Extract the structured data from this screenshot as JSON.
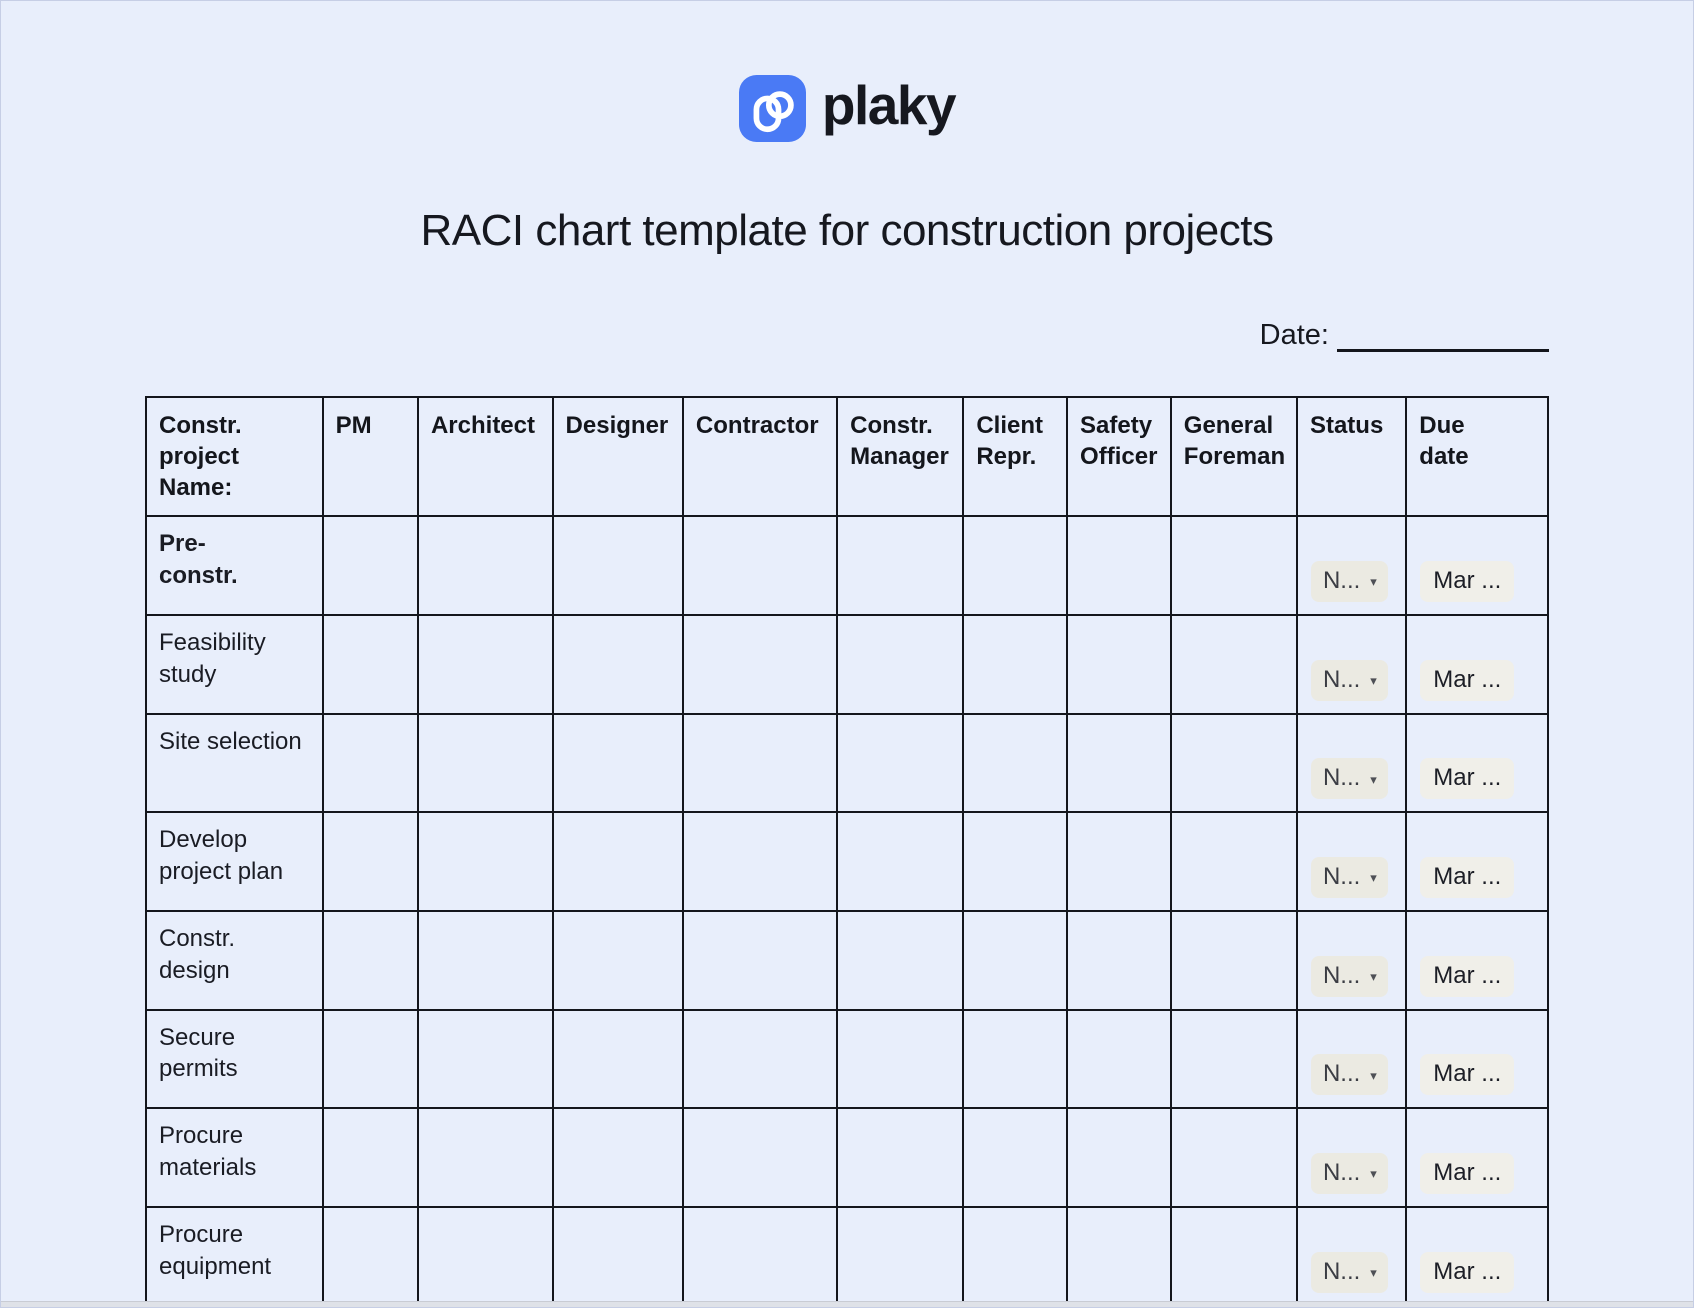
{
  "colors": {
    "page_bg": "#e8eefb",
    "logo_blue": "#4a7af5",
    "text_dark": "#16181f",
    "table_border": "#14161c",
    "status_chip_bg": "#ebeae2",
    "due_chip_bg": "#f0efe9"
  },
  "brand": {
    "name": "plaky"
  },
  "header": {
    "title": "RACI chart template for construction projects"
  },
  "date": {
    "label": "Date:"
  },
  "table": {
    "caret": "▾",
    "columns": [
      {
        "label": "Constr.\nproject\nName:",
        "width_pct": 12.6
      },
      {
        "label": "PM",
        "width_pct": 6.8
      },
      {
        "label": "Architect",
        "width_pct": 9.6
      },
      {
        "label": "Designer",
        "width_pct": 9.3
      },
      {
        "label": "Contractor",
        "width_pct": 11.0
      },
      {
        "label": "Constr.\nManager",
        "width_pct": 9.0
      },
      {
        "label": "Client\nRepr.",
        "width_pct": 7.4
      },
      {
        "label": "Safety\nOfficer",
        "width_pct": 7.4
      },
      {
        "label": "General\nForeman",
        "width_pct": 9.0
      },
      {
        "label": "Status",
        "width_pct": 7.8
      },
      {
        "label": "Due\ndate",
        "width_pct": 10.1
      }
    ],
    "rows": [
      {
        "label": "Pre-\nconstr.",
        "bold": true,
        "status": "N...",
        "due": "Mar ..."
      },
      {
        "label": "Feasibility\nstudy",
        "bold": false,
        "status": "N...",
        "due": "Mar ..."
      },
      {
        "label": "Site selection",
        "bold": false,
        "status": "N...",
        "due": "Mar ..."
      },
      {
        "label": "Develop\nproject plan",
        "bold": false,
        "status": "N...",
        "due": "Mar ..."
      },
      {
        "label": "Constr.\ndesign",
        "bold": false,
        "status": "N...",
        "due": "Mar ..."
      },
      {
        "label": "Secure\npermits",
        "bold": false,
        "status": "N...",
        "due": "Mar ..."
      },
      {
        "label": "Procure\nmaterials",
        "bold": false,
        "status": "N...",
        "due": "Mar ..."
      },
      {
        "label": "Procure\nequipment",
        "bold": false,
        "status": "N...",
        "due": "Mar ..."
      }
    ]
  }
}
